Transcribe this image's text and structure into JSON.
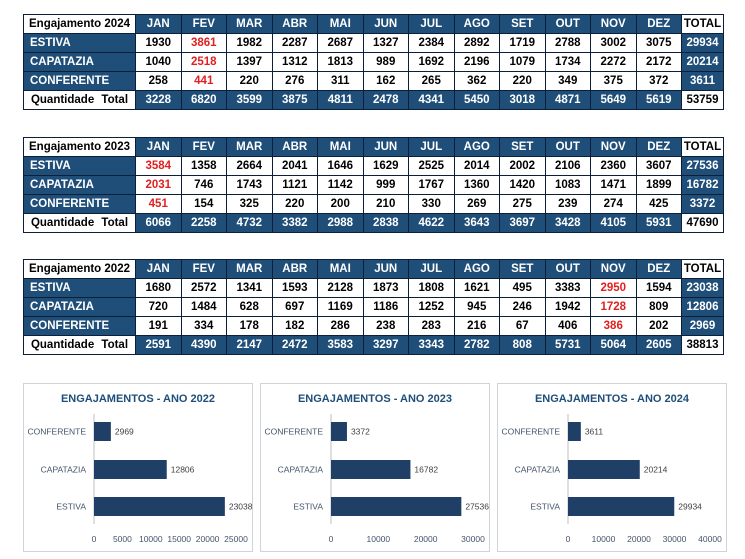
{
  "tables": [
    {
      "title": "Engajamento  2024",
      "months": [
        "JAN",
        "FEV",
        "MAR",
        "ABR",
        "MAI",
        "JUN",
        "JUL",
        "AGO",
        "SET",
        "OUT",
        "NOV",
        "DEZ"
      ],
      "total_label": "TOTAL",
      "rows": [
        {
          "label": "ESTIVA",
          "values": [
            "1930",
            "3861",
            "1982",
            "2287",
            "2687",
            "1327",
            "2384",
            "2892",
            "1719",
            "2788",
            "3002",
            "3075"
          ],
          "red": [
            1
          ],
          "total": "29934"
        },
        {
          "label": "CAPATAZIA",
          "values": [
            "1040",
            "2518",
            "1397",
            "1312",
            "1813",
            "989",
            "1692",
            "2196",
            "1079",
            "1734",
            "2272",
            "2172"
          ],
          "red": [
            1
          ],
          "total": "20214"
        },
        {
          "label": "CONFERENTE",
          "values": [
            "258",
            "441",
            "220",
            "276",
            "311",
            "162",
            "265",
            "362",
            "220",
            "349",
            "375",
            "372"
          ],
          "red": [
            1
          ],
          "total": "3611"
        }
      ],
      "sum_label": "Quantidade  Total",
      "sums": [
        "3228",
        "6820",
        "3599",
        "3875",
        "4811",
        "2478",
        "4341",
        "5450",
        "3018",
        "4871",
        "5649",
        "5619"
      ],
      "grand_total": "53759"
    },
    {
      "title": "Engajamento  2023",
      "months": [
        "JAN",
        "FEV",
        "MAR",
        "ABR",
        "MAI",
        "JUN",
        "JUL",
        "AGO",
        "SET",
        "OUT",
        "NOV",
        "DEZ"
      ],
      "total_label": "TOTAL",
      "rows": [
        {
          "label": "ESTIVA",
          "values": [
            "3584",
            "1358",
            "2664",
            "2041",
            "1646",
            "1629",
            "2525",
            "2014",
            "2002",
            "2106",
            "2360",
            "3607"
          ],
          "red": [
            0
          ],
          "total": "27536"
        },
        {
          "label": "CAPATAZIA",
          "values": [
            "2031",
            "746",
            "1743",
            "1121",
            "1142",
            "999",
            "1767",
            "1360",
            "1420",
            "1083",
            "1471",
            "1899"
          ],
          "red": [
            0
          ],
          "total": "16782"
        },
        {
          "label": "CONFERENTE",
          "values": [
            "451",
            "154",
            "325",
            "220",
            "200",
            "210",
            "330",
            "269",
            "275",
            "239",
            "274",
            "425"
          ],
          "red": [
            0
          ],
          "total": "3372"
        }
      ],
      "sum_label": "Quantidade  Total",
      "sums": [
        "6066",
        "2258",
        "4732",
        "3382",
        "2988",
        "2838",
        "4622",
        "3643",
        "3697",
        "3428",
        "4105",
        "5931"
      ],
      "grand_total": "47690"
    },
    {
      "title": "Engajamento  2022",
      "months": [
        "JAN",
        "FEV",
        "MAR",
        "ABR",
        "MAI",
        "JUN",
        "JUL",
        "AGO",
        "SET",
        "OUT",
        "NOV",
        "DEZ"
      ],
      "total_label": "TOTAL",
      "rows": [
        {
          "label": "ESTIVA",
          "values": [
            "1680",
            "2572",
            "1341",
            "1593",
            "2128",
            "1873",
            "1808",
            "1621",
            "495",
            "3383",
            "2950",
            "1594"
          ],
          "red": [
            10
          ],
          "total": "23038"
        },
        {
          "label": "CAPATAZIA",
          "values": [
            "720",
            "1484",
            "628",
            "697",
            "1169",
            "1186",
            "1252",
            "945",
            "246",
            "1942",
            "1728",
            "809"
          ],
          "red": [
            10
          ],
          "total": "12806"
        },
        {
          "label": "CONFERENTE",
          "values": [
            "191",
            "334",
            "178",
            "182",
            "286",
            "238",
            "283",
            "216",
            "67",
            "406",
            "386",
            "202"
          ],
          "red": [
            10
          ],
          "total": "2969"
        }
      ],
      "sum_label": "Quantidade  Total",
      "sums": [
        "2591",
        "4390",
        "2147",
        "2472",
        "3583",
        "3297",
        "3343",
        "2782",
        "808",
        "5731",
        "5064",
        "2605"
      ],
      "grand_total": "38813"
    }
  ],
  "chart_data": [
    {
      "type": "bar",
      "orientation": "horizontal",
      "title": "ENGAJAMENTOS - ANO 2022",
      "categories": [
        "CONFERENTE",
        "CAPATAZIA",
        "ESTIVA"
      ],
      "values": [
        2969,
        12806,
        23038
      ],
      "xlim": [
        0,
        25000
      ],
      "xticks": [
        "0",
        "5000",
        "10000",
        "15000",
        "20000",
        "25000"
      ],
      "bar_color": "#1f3f66",
      "grid": false
    },
    {
      "type": "bar",
      "orientation": "horizontal",
      "title": "ENGAJAMENTOS - ANO 2023",
      "categories": [
        "CONFERENTE",
        "CAPATAZIA",
        "ESTIVA"
      ],
      "values": [
        3372,
        16782,
        27536
      ],
      "xlim": [
        0,
        30000
      ],
      "xticks": [
        "0",
        "10000",
        "20000",
        "30000"
      ],
      "bar_color": "#1f3f66",
      "grid": false
    },
    {
      "type": "bar",
      "orientation": "horizontal",
      "title": "ENGAJAMENTOS - ANO 2024",
      "categories": [
        "CONFERENTE",
        "CAPATAZIA",
        "ESTIVA"
      ],
      "values": [
        3611,
        20214,
        29934
      ],
      "xlim": [
        0,
        40000
      ],
      "xticks": [
        "0",
        "10000",
        "20000",
        "30000",
        "40000"
      ],
      "bar_color": "#1f3f66",
      "grid": false
    }
  ],
  "colors": {
    "header_blue": "#1f4e79",
    "highlight_red": "#e02020",
    "title_blue": "#1f4e79",
    "axis_text": "#44546a"
  }
}
